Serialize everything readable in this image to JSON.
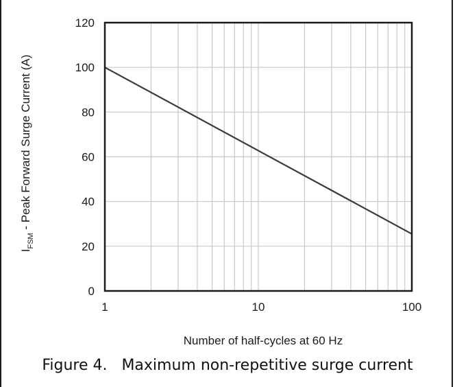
{
  "chart_data": {
    "type": "line",
    "xscale": "log",
    "xlim": [
      1,
      100
    ],
    "ylim": [
      0,
      120
    ],
    "xticks": [
      1,
      10,
      100
    ],
    "xtick_labels": [
      "1",
      "10",
      "100"
    ],
    "yticks": [
      0,
      20,
      40,
      60,
      80,
      100,
      120
    ],
    "ytick_labels": [
      "0",
      "20",
      "40",
      "60",
      "80",
      "100",
      "120"
    ],
    "grid": true,
    "xlabel": "Number of half-cycles at 60 Hz",
    "ylabel": {
      "prefix": "I",
      "subscript": "FSM",
      "suffix": " - Peak Forward Surge Current (A)"
    },
    "series": [
      {
        "x": [
          1,
          100
        ],
        "y": [
          100,
          25.5
        ]
      }
    ],
    "colors": {
      "line": "#3a3a3a",
      "grid": "#c8c8c8",
      "axis": "#1a1a1a"
    }
  },
  "caption": "Figure 4.   Maximum non-repetitive surge current"
}
